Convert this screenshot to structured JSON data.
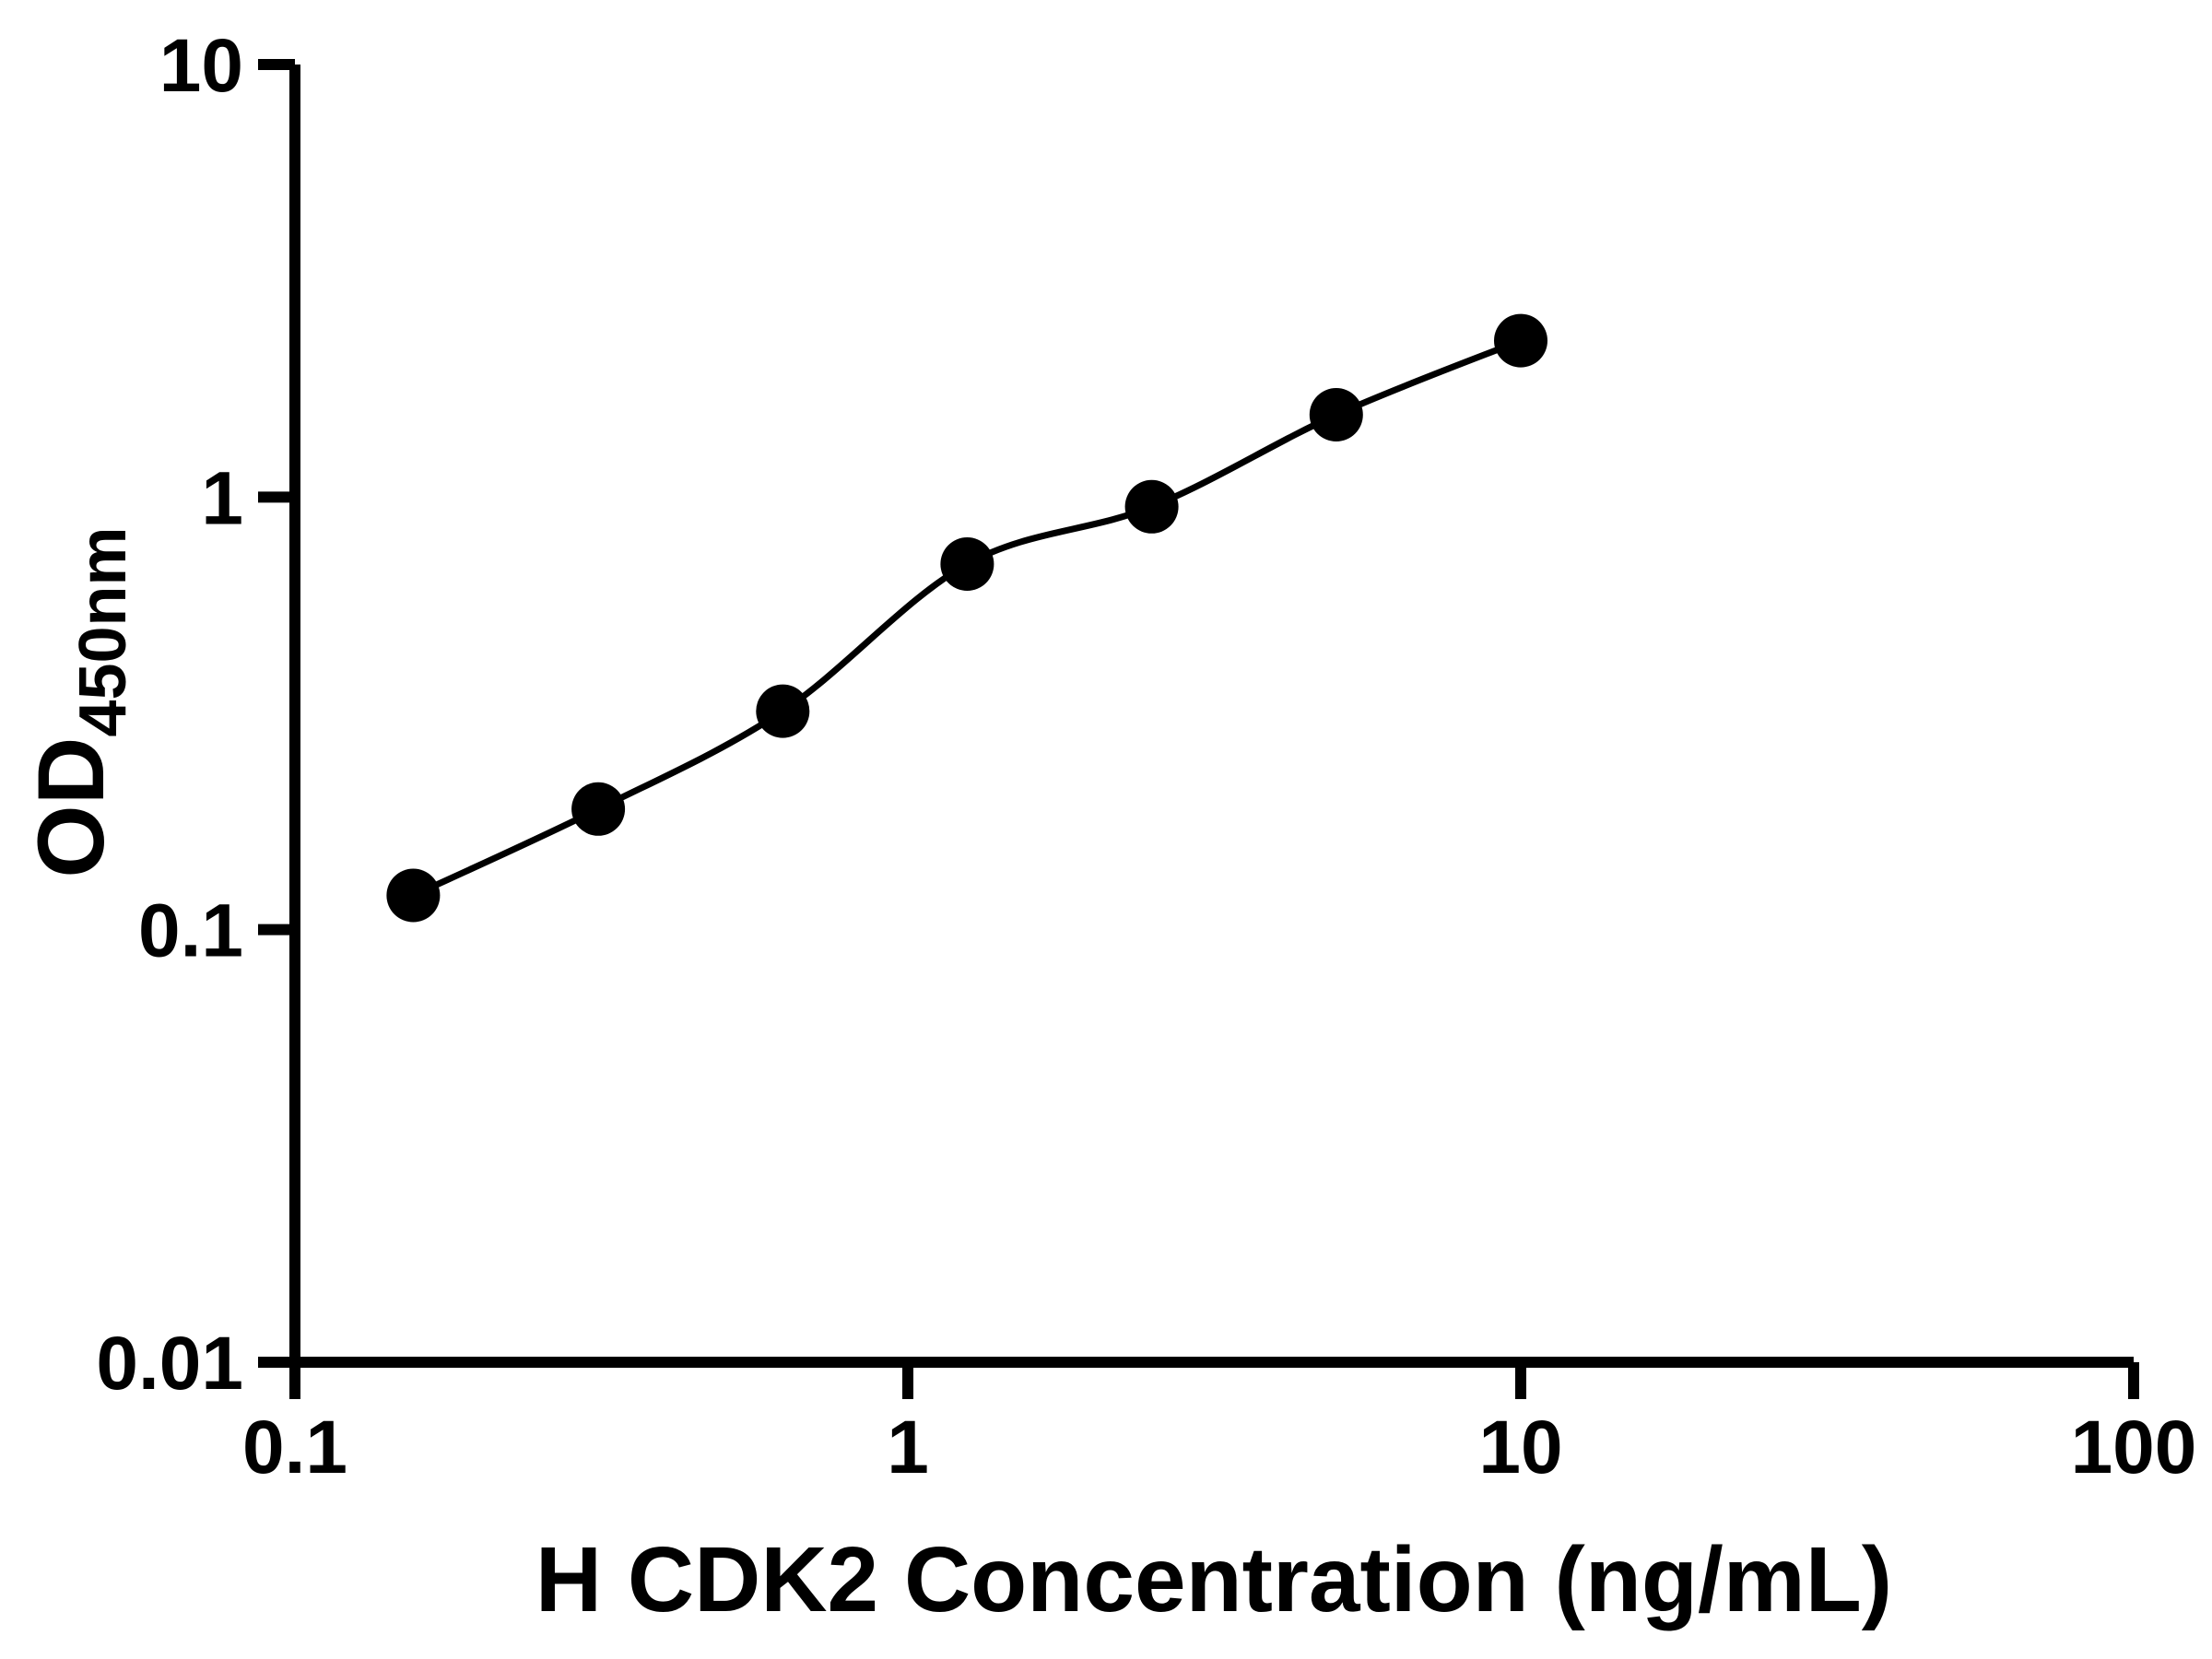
{
  "figure": {
    "background": "#ffffff"
  },
  "chart_data": {
    "type": "scatter",
    "title": "",
    "xlabel": "H CDK2 Concentration (ng/mL)",
    "ylabel": "OD",
    "ylabel_sub": "450nm",
    "x_scale": "log",
    "y_scale": "log",
    "xlim": [
      0.1,
      100
    ],
    "ylim": [
      0.01,
      10
    ],
    "x_tick_values": [
      0.1,
      1,
      10,
      100
    ],
    "x_tick_labels": [
      "0.1",
      "1",
      "10",
      "100"
    ],
    "y_tick_values": [
      0.01,
      0.1,
      1,
      10
    ],
    "y_tick_labels": [
      "0.01",
      "0.1",
      "1",
      "10"
    ],
    "grid": false,
    "legend": "none",
    "axis_color": "#000000",
    "point_color": "#000000",
    "curve_color": "#000000",
    "series": [
      {
        "x": [
          0.156,
          0.3125,
          0.625,
          1.25,
          2.5,
          5,
          10
        ],
        "y": [
          0.12,
          0.19,
          0.32,
          0.7,
          0.95,
          1.55,
          2.3
        ]
      }
    ],
    "fit_curve": true
  }
}
